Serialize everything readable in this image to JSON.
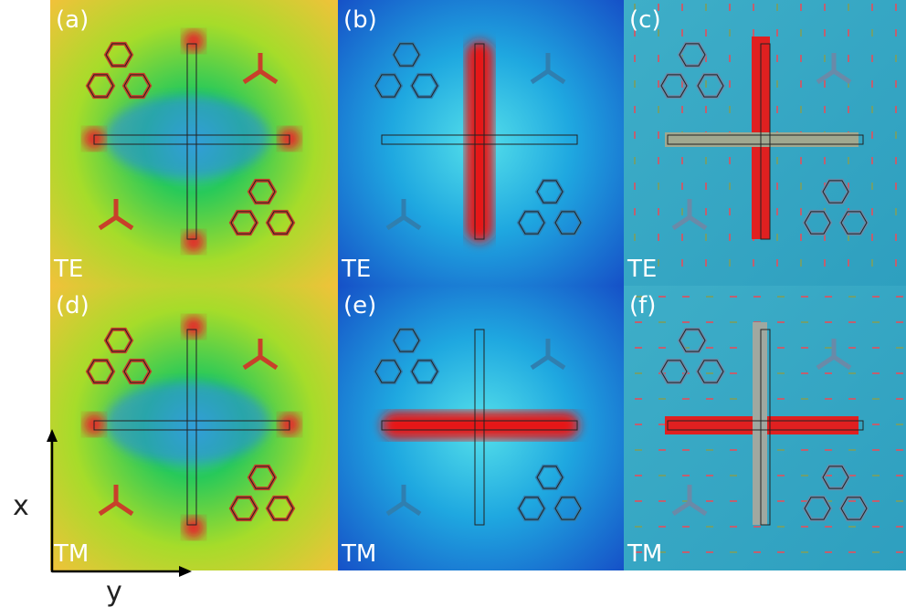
{
  "panels": [
    {
      "label": "(a)",
      "mode": "TE"
    },
    {
      "label": "(b)",
      "mode": "TE"
    },
    {
      "label": "(c)",
      "mode": "TE"
    },
    {
      "label": "(d)",
      "mode": "TM"
    },
    {
      "label": "(e)",
      "mode": "TM"
    },
    {
      "label": "(f)",
      "mode": "TM"
    }
  ],
  "axes": {
    "vertical": "x",
    "horizontal": "y"
  }
}
